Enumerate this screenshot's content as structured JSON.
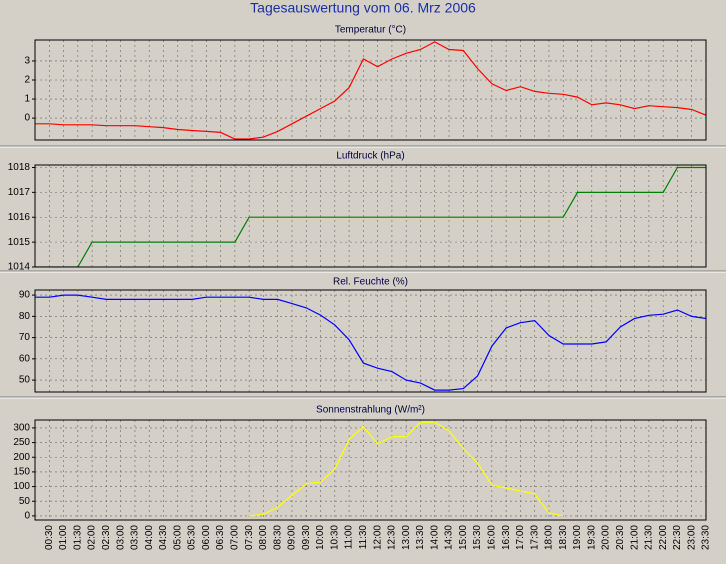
{
  "title": "Tagesauswertung vom 06. Mrz 2006",
  "chart_data": [
    {
      "type": "line",
      "title": "Temperatur (°C)",
      "color": "#ff0000",
      "grid": true,
      "ylim": [
        -1.15,
        4.1
      ],
      "yticks": [
        0,
        1,
        2,
        3
      ],
      "values": [
        -0.3,
        -0.3,
        -0.35,
        -0.35,
        -0.35,
        -0.4,
        -0.4,
        -0.4,
        -0.45,
        -0.5,
        -0.6,
        -0.65,
        -0.7,
        -0.75,
        -1.1,
        -1.1,
        -1.0,
        -0.7,
        -0.3,
        0.1,
        0.5,
        0.9,
        1.6,
        3.1,
        2.7,
        3.1,
        3.4,
        3.6,
        4.0,
        3.6,
        3.55,
        2.6,
        1.8,
        1.45,
        1.65,
        1.4,
        1.3,
        1.25,
        1.1,
        0.7,
        0.8,
        0.7,
        0.5,
        0.65,
        0.6,
        0.55,
        0.45,
        0.15
      ]
    },
    {
      "type": "line",
      "title": "Luftdruck (hPa)",
      "color": "#008000",
      "grid": true,
      "ylim": [
        1014,
        1018.1
      ],
      "yticks": [
        1014,
        1015,
        1016,
        1017,
        1018
      ],
      "values": [
        1014,
        1014,
        1014,
        1014,
        1015,
        1015,
        1015,
        1015,
        1015,
        1015,
        1015,
        1015,
        1015,
        1015,
        1015,
        1016,
        1016,
        1016,
        1016,
        1016,
        1016,
        1016,
        1016,
        1016,
        1016,
        1016,
        1016,
        1016,
        1016,
        1016,
        1016,
        1016,
        1016,
        1016,
        1016,
        1016,
        1016,
        1016,
        1017,
        1017,
        1017,
        1017,
        1017,
        1017,
        1017,
        1018,
        1018,
        1018
      ]
    },
    {
      "type": "line",
      "title": "Rel. Feuchte (%)",
      "color": "#0000ff",
      "grid": true,
      "ylim": [
        44.4,
        92.4
      ],
      "yticks": [
        50,
        60,
        70,
        80,
        90
      ],
      "values": [
        89,
        89,
        90,
        90,
        89,
        88,
        88,
        88,
        88,
        88,
        88,
        88,
        89,
        89,
        89,
        89,
        88,
        88,
        86,
        84,
        80.6,
        76,
        69,
        58,
        55.6,
        54,
        50,
        48.6,
        45.3,
        45.3,
        46,
        52,
        66,
        74.5,
        77,
        78,
        71,
        67,
        67,
        67,
        68,
        75,
        79,
        80.5,
        81,
        83,
        80,
        79
      ]
    },
    {
      "type": "line",
      "title": "Sonnenstrahlung (W/m²)",
      "color": "#ffff00",
      "grid": true,
      "ylim": [
        -14,
        327
      ],
      "yticks": [
        0,
        50,
        100,
        150,
        200,
        250,
        300
      ],
      "values": [
        null,
        null,
        null,
        null,
        null,
        null,
        null,
        null,
        null,
        null,
        null,
        null,
        null,
        null,
        null,
        0,
        5,
        30,
        70,
        110,
        115,
        160,
        260,
        305,
        245,
        270,
        270,
        320,
        320,
        290,
        230,
        180,
        105,
        95,
        85,
        75,
        10,
        0,
        null,
        null,
        null,
        null,
        null,
        null,
        null,
        null,
        null,
        null
      ],
      "categories": [
        null,
        "00:30",
        "01:00",
        "01:30",
        "02:00",
        "02:30",
        "03:00",
        "03:30",
        "04:00",
        "04:30",
        "05:00",
        "05:30",
        "06:00",
        "06:30",
        "07:00",
        "07:30",
        "08:00",
        "08:30",
        "09:00",
        "09:30",
        "10:00",
        "10:30",
        "11:00",
        "11:30",
        "12:00",
        "12:30",
        "13:00",
        "13:30",
        "14:00",
        "14:30",
        "15:00",
        "15:30",
        "16:00",
        "16:30",
        "17:00",
        "17:30",
        "18:00",
        "18:30",
        "19:00",
        "19:30",
        "20:00",
        "20:30",
        "21:00",
        "21:30",
        "22:00",
        "22:30",
        "23:00",
        "23:30"
      ]
    }
  ]
}
